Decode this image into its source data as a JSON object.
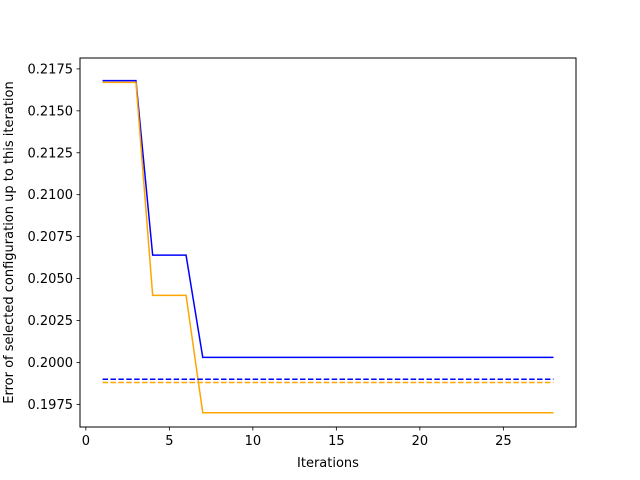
{
  "chart_data": {
    "type": "line",
    "title": "",
    "xlabel": "Iterations",
    "ylabel": "Error of selected configuration up to this iteration",
    "xlim": [
      -0.35,
      29.35
    ],
    "ylim": [
      0.19615,
      0.21815
    ],
    "xticks": [
      0,
      5,
      10,
      15,
      20,
      25
    ],
    "xtick_labels": [
      "0",
      "5",
      "10",
      "15",
      "20",
      "25"
    ],
    "yticks": [
      0.1975,
      0.2,
      0.2025,
      0.205,
      0.2075,
      0.21,
      0.2125,
      0.215,
      0.2175
    ],
    "ytick_labels": [
      "0.1975",
      "0.2000",
      "0.2025",
      "0.2050",
      "0.2075",
      "0.2100",
      "0.2125",
      "0.2150",
      "0.2175"
    ],
    "grid": false,
    "legend": "none",
    "series": [
      {
        "color": "#0000ff",
        "style": "solid",
        "points": [
          [
            1,
            0.2168
          ],
          [
            3,
            0.2168
          ],
          [
            4,
            0.2064
          ],
          [
            6,
            0.2064
          ],
          [
            7,
            0.2003
          ],
          [
            28,
            0.2003
          ]
        ]
      },
      {
        "color": "#ffa500",
        "style": "solid",
        "points": [
          [
            1,
            0.2167
          ],
          [
            3,
            0.2167
          ],
          [
            4,
            0.204
          ],
          [
            6,
            0.204
          ],
          [
            7,
            0.197
          ],
          [
            28,
            0.197
          ]
        ]
      },
      {
        "color": "#0000ff",
        "style": "dashed",
        "points": [
          [
            1,
            0.199
          ],
          [
            28,
            0.199
          ]
        ]
      },
      {
        "color": "#ffa500",
        "style": "dashed",
        "points": [
          [
            1,
            0.1988
          ],
          [
            28,
            0.1988
          ]
        ]
      }
    ]
  }
}
